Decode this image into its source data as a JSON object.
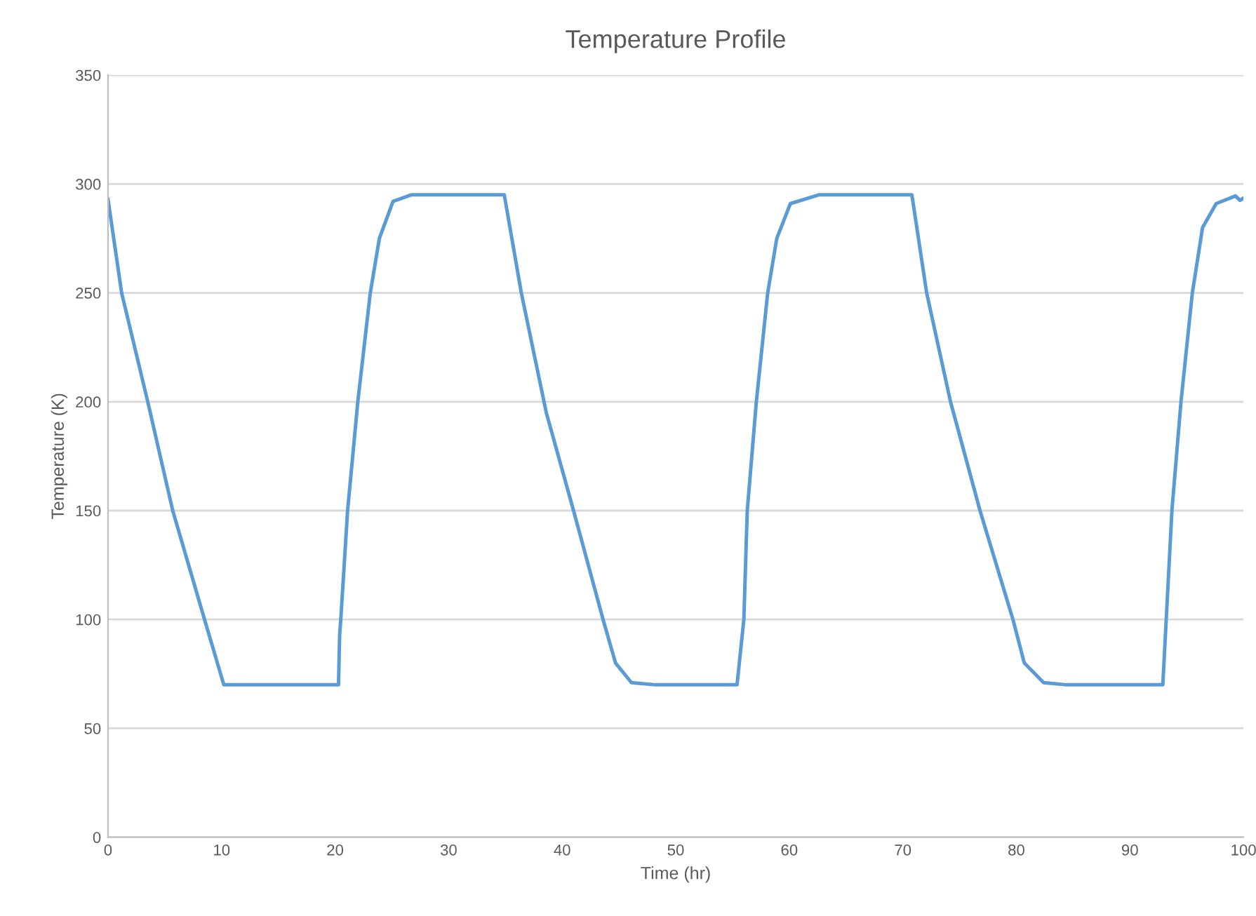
{
  "chart_data": {
    "type": "line",
    "title": "Temperature Profile",
    "xlabel": "Time (hr)",
    "ylabel": "Temperature (K)",
    "xlim": [
      0,
      100
    ],
    "xticks": [
      0,
      10,
      20,
      30,
      40,
      50,
      60,
      70,
      80,
      90,
      100
    ],
    "ylim": [
      0,
      350
    ],
    "yticks": [
      0,
      50,
      100,
      150,
      200,
      250,
      300,
      350
    ],
    "grid": "y",
    "marker": "none",
    "line_style": "solid",
    "series": [
      {
        "color": "#5b9bd5",
        "x": [
          0,
          1.2,
          3.5,
          5.7,
          8.5,
          10.2,
          20.3,
          20.4,
          20.5,
          21.1,
          22.0,
          23.1,
          23.9,
          25.1,
          26.7,
          34.9,
          36.4,
          38.4,
          38.6,
          41.0,
          43.6,
          44.7,
          46.1,
          48.2,
          55.4,
          56.0,
          56.3,
          57.1,
          58.1,
          58.9,
          60.1,
          62.6,
          70.8,
          72.1,
          74.2,
          76.8,
          79.7,
          80.7,
          82.4,
          84.4,
          92.9,
          93.2,
          93.7,
          94.5,
          95.5,
          96.4,
          97.6,
          99.3,
          99.7,
          100
        ],
        "values": [
          293,
          250,
          200,
          150,
          100,
          70,
          70,
          93,
          100,
          150,
          200,
          250,
          275,
          292,
          295,
          295,
          250,
          200,
          195,
          150,
          100,
          80,
          71,
          70,
          70,
          100,
          150,
          200,
          250,
          275,
          291,
          295,
          295,
          250,
          200,
          150,
          100,
          80,
          71,
          70,
          70,
          100,
          150,
          200,
          250,
          280,
          291,
          294.5,
          292.5,
          293.5
        ]
      }
    ]
  }
}
